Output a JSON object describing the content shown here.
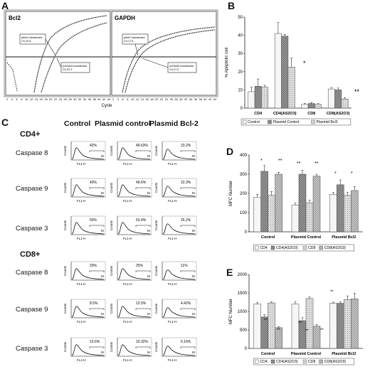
{
  "panel_labels": {
    "a": "A",
    "b": "B",
    "c": "C",
    "d": "D",
    "e": "E"
  },
  "panel_a": {
    "bcl2": {
      "title": "Bcl2",
      "annotation_1_line1": "pBcl2 transfected",
      "annotation_1_line2": "Ct=13.6",
      "annotation_2_line1": "pcDNA3 transfected",
      "annotation_2_line2": "Ct=22.3"
    },
    "gapdh": {
      "title": "GAPDH",
      "annotation_1_line1": "pBcl2 transfected",
      "annotation_1_line2": "Ct=17.5",
      "annotation_2_line1": "pcDNA3 transfected",
      "annotation_2_line2": "Ct=17.9"
    },
    "xticks": [
      "2",
      "4",
      "6",
      "8",
      "10",
      "12",
      "14",
      "16",
      "18",
      "20",
      "22",
      "24",
      "26",
      "28",
      "30",
      "32",
      "34",
      "36",
      "38",
      "40",
      "42",
      "44"
    ],
    "xlabel": "Cycle"
  },
  "panel_c": {
    "headers": [
      "Control",
      "Plasmid control",
      "Plasmid Bcl-2"
    ],
    "groups": [
      {
        "label": "CD4+",
        "rows": [
          {
            "label": "Caspase 8",
            "values": [
              "42%",
              "49.63%",
              "23.2%"
            ]
          },
          {
            "label": "Caspase 9",
            "values": [
              "43%",
              "49.6%",
              "22.3%"
            ]
          },
          {
            "label": "Caspase 3",
            "values": [
              "50%",
              "53.4%",
              "25.2%"
            ]
          }
        ]
      },
      {
        "label": "CD8+",
        "rows": [
          {
            "label": "Caspase 8",
            "values": [
              "20%",
              "25%",
              "11%"
            ]
          },
          {
            "label": "Caspase 9",
            "values": [
              "8.5%",
              "12.5%",
              "4.42%"
            ]
          },
          {
            "label": "Caspase 3",
            "values": [
              "10.6%",
              "10.32%",
              "5.16%"
            ]
          }
        ]
      }
    ],
    "axis_y": "Counts",
    "axis_x": "FL1-H",
    "gate": "M"
  },
  "chart_data": [
    {
      "id": "B",
      "type": "bar",
      "ylabel": "% Apoptotic cell",
      "ylim": [
        0,
        50
      ],
      "yticks": [
        "0",
        "10",
        "20",
        "30",
        "40",
        "50"
      ],
      "categories": [
        "CD4",
        "CD4(AS2O3)",
        "CD8",
        "CD8(AS2O3)"
      ],
      "series": [
        {
          "name": "Control",
          "values": [
            9,
            41,
            2,
            10.5
          ],
          "errors": [
            2.5,
            6,
            0.5,
            0.8
          ]
        },
        {
          "name": "Plasmid Control",
          "values": [
            12,
            39.5,
            2.5,
            10
          ],
          "errors": [
            4,
            1,
            0.5,
            1
          ]
        },
        {
          "name": "Plasmid Bcl2",
          "values": [
            11.5,
            22.5,
            2,
            5
          ],
          "errors": [
            1,
            5,
            0.5,
            0.8
          ]
        }
      ],
      "annotations": [
        "*",
        "**"
      ],
      "legend": "bottom"
    },
    {
      "id": "D",
      "type": "bar",
      "ylabel": "MFC Number",
      "ylim": [
        0,
        400
      ],
      "yticks": [
        "0",
        "100",
        "200",
        "300",
        "400"
      ],
      "categories": [
        "Control",
        "Plasmid Control",
        "Plasmid Bcl2"
      ],
      "series": [
        {
          "name": "CD4",
          "values": [
            180,
            140,
            195
          ],
          "errors": [
            15,
            10,
            10
          ]
        },
        {
          "name": "CD4(AS2O3)",
          "values": [
            315,
            300,
            245
          ],
          "errors": [
            30,
            20,
            25
          ]
        },
        {
          "name": "CD8",
          "values": [
            190,
            150,
            190
          ],
          "errors": [
            20,
            15,
            15
          ]
        },
        {
          "name": "CD8(AS2O3)",
          "values": [
            300,
            290,
            215
          ],
          "errors": [
            10,
            10,
            20
          ]
        }
      ],
      "annotations": [
        "*",
        "**",
        "**",
        "**",
        "*",
        "*"
      ],
      "legend": "bottom"
    },
    {
      "id": "E",
      "type": "bar",
      "ylabel": "MFC Number",
      "ylim": [
        0,
        2000
      ],
      "yticks": [
        "0",
        "500",
        "1000",
        "1500",
        "2000"
      ],
      "categories": [
        "Control",
        "Plasmid Control",
        "Plasmid Bcl2"
      ],
      "series": [
        {
          "name": "CD4",
          "values": [
            1200,
            1200,
            1220
          ],
          "errors": [
            40,
            60,
            30
          ]
        },
        {
          "name": "CD4(AS2O3)",
          "values": [
            850,
            750,
            1220
          ],
          "errors": [
            60,
            80,
            40
          ]
        },
        {
          "name": "CD8",
          "values": [
            1230,
            1350,
            1320
          ],
          "errors": [
            30,
            40,
            100
          ]
        },
        {
          "name": "CD8(AS2O3)",
          "values": [
            560,
            600,
            1340
          ],
          "errors": [
            30,
            40,
            150
          ]
        }
      ],
      "annotations": [
        "**",
        "**",
        "**",
        "**",
        "**",
        "**"
      ],
      "legend": "bottom"
    }
  ],
  "colors": {
    "axis": "#222222",
    "frame": "#777777",
    "curve": "#111111"
  }
}
